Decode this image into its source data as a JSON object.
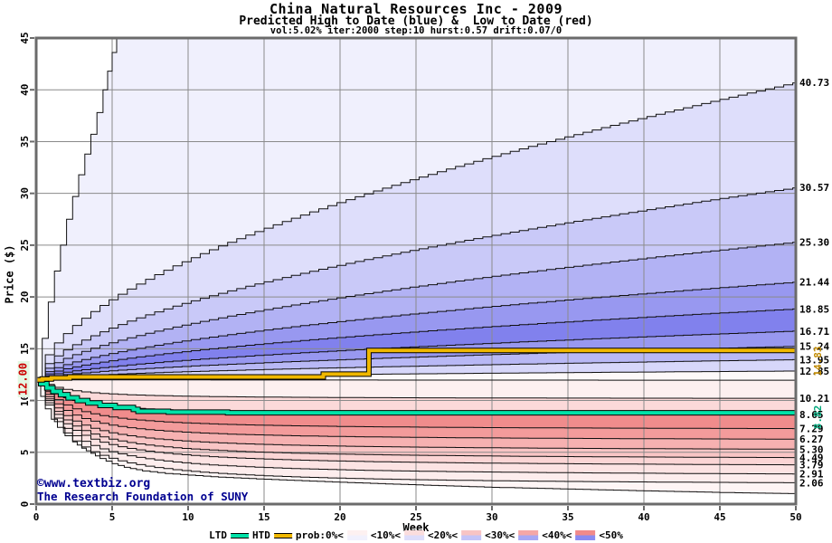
{
  "header": {
    "title": "China Natural Resources Inc - 2009",
    "subtitle": "Predicted High to Date (blue) &  Low to Date (red)",
    "params": "vol:5.02% iter:2000 step:10 hurst:0.57 drift:0.07/0"
  },
  "footer": {
    "copyright": "©www.textbiz.org",
    "attribution": "The Research Foundation of SUNY"
  },
  "legend": {
    "ltd_label": "LTD",
    "htd_label": "HTD",
    "prob_label": "prob:0%<",
    "step_labels": [
      "<10%<",
      "<20%<",
      "<30%<",
      "<40%<",
      "<50%"
    ],
    "swatch_colors": [
      [
        "#fdf1f1",
        "#f1f1fd"
      ],
      [
        "#fbdddd",
        "#ddddfb"
      ],
      [
        "#f8c4c4",
        "#c4c4f8"
      ],
      [
        "#f5a7a7",
        "#a7a7f5"
      ],
      [
        "#f18a8a",
        "#8a8af1"
      ]
    ]
  },
  "colors": {
    "ltd": "#00e2a8",
    "htd": "#f0b800",
    "ltd_final_label": "#00a87c",
    "htd_final_label": "#c08a00",
    "start_label": "#cc0000",
    "start_label_bg": "#e3f8e3",
    "copyright": "#000090",
    "grid": "#8a8a8a",
    "frame": "#6b6b6b",
    "percentile_line": "#101010",
    "band_gap": "#fdf9f9",
    "upper_bands": [
      "#f0f0fd",
      "#dedefb",
      "#c9c9f8",
      "#b2b2f4",
      "#9898f0",
      "#8181ed",
      "#9898f0",
      "#b8b8f5",
      "#d7d7fa"
    ],
    "lower_bands": [
      "#fdf0f0",
      "#fbd9d9",
      "#f08c8c",
      "#f39b9b",
      "#f6b1b1",
      "#f9c5c5",
      "#fbd5d5",
      "#fce3e3",
      "#fdeded",
      "#fef5f5"
    ]
  },
  "chart_data": {
    "type": "area",
    "title": "China Natural Resources Inc - 2009",
    "xlabel": "Week",
    "ylabel": "Price ($)",
    "xlim": [
      0,
      50
    ],
    "ylim": [
      0,
      45
    ],
    "x_ticks": [
      0,
      5,
      10,
      15,
      20,
      25,
      30,
      35,
      40,
      45,
      50
    ],
    "y_ticks": [
      0,
      5,
      10,
      15,
      20,
      25,
      30,
      35,
      40,
      45
    ],
    "grid": true,
    "start_price": 12.0,
    "start_price_label": "12.00",
    "upper_percentile_endpoints": [
      40.73,
      30.57,
      25.3,
      21.44,
      18.85,
      16.71,
      15.24,
      13.95,
      12.85
    ],
    "lower_percentile_endpoints": [
      10.21,
      8.65,
      7.29,
      6.27,
      5.3,
      4.49,
      3.79,
      2.91,
      2.06
    ],
    "upper_envelope": [
      [
        0,
        12
      ],
      [
        0.4,
        16
      ],
      [
        0.8,
        19.5
      ],
      [
        1.2,
        22.5
      ],
      [
        1.6,
        25
      ],
      [
        2,
        27.5
      ],
      [
        2.4,
        29.7
      ],
      [
        2.8,
        31.8
      ],
      [
        3.2,
        33.8
      ],
      [
        3.6,
        35.7
      ],
      [
        4,
        37.8
      ],
      [
        4.4,
        40
      ],
      [
        4.7,
        41.8
      ],
      [
        5,
        43.6
      ],
      [
        5.3,
        46
      ],
      [
        50,
        46
      ]
    ],
    "lower_envelope": [
      [
        0,
        12
      ],
      [
        0.3,
        10.4
      ],
      [
        0.6,
        9.2
      ],
      [
        1,
        8.2
      ],
      [
        1.4,
        7.4
      ],
      [
        1.9,
        6.6
      ],
      [
        2.4,
        6.0
      ],
      [
        3,
        5.4
      ],
      [
        3.6,
        4.9
      ],
      [
        4.2,
        4.4
      ],
      [
        5,
        3.9
      ],
      [
        5.8,
        3.55
      ],
      [
        7,
        3.2
      ],
      [
        8.5,
        2.95
      ],
      [
        10,
        2.8
      ],
      [
        12,
        2.6
      ],
      [
        15,
        2.4
      ],
      [
        18,
        2.22
      ],
      [
        21,
        2.05
      ],
      [
        25,
        1.85
      ],
      [
        30,
        1.62
      ],
      [
        35,
        1.45
      ],
      [
        40,
        1.28
      ],
      [
        45,
        1.12
      ],
      [
        50,
        1.0
      ]
    ],
    "lower_max_line": [
      [
        0,
        12
      ],
      [
        5,
        11.99
      ],
      [
        15,
        11.98
      ],
      [
        30,
        11.97
      ],
      [
        50,
        11.96
      ]
    ],
    "htd_line": [
      [
        0,
        12.0
      ],
      [
        0.4,
        12.08
      ],
      [
        1,
        12.18
      ],
      [
        2.2,
        12.28
      ],
      [
        18.6,
        12.28
      ],
      [
        18.9,
        12.55
      ],
      [
        21.6,
        12.55
      ],
      [
        21.9,
        14.83
      ],
      [
        50,
        14.83
      ]
    ],
    "htd_final": 14.83,
    "htd_final_label": "14.83",
    "ltd_line": [
      [
        0,
        12
      ],
      [
        0.3,
        11.62
      ],
      [
        0.7,
        11.22
      ],
      [
        1.1,
        10.88
      ],
      [
        1.6,
        10.56
      ],
      [
        2.1,
        10.26
      ],
      [
        2.7,
        10.0
      ],
      [
        3.4,
        9.76
      ],
      [
        4.2,
        9.52
      ],
      [
        5.2,
        9.32
      ],
      [
        6.4,
        9.14
      ],
      [
        6.7,
        8.96
      ],
      [
        8.4,
        8.96
      ],
      [
        8.7,
        8.88
      ],
      [
        12.3,
        8.88
      ],
      [
        12.6,
        8.82
      ],
      [
        50,
        8.82
      ]
    ],
    "ltd_final": 8.82,
    "ltd_final_label": "8.82"
  }
}
